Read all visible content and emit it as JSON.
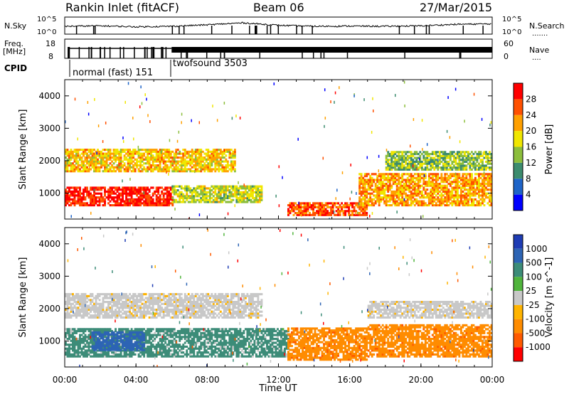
{
  "header": {
    "station": "Rankin Inlet (fitACF)",
    "beam": "Beam 06",
    "date": "27/Mar/2015"
  },
  "colors": {
    "power_scale": [
      "#0000ff",
      "#1e64c8",
      "#3c8c6e",
      "#8cbe3c",
      "#f0e600",
      "#ffa000",
      "#ff5000",
      "#ff0000"
    ],
    "velocity_scale": [
      "#1e3cb4",
      "#2d64b4",
      "#3c8c78",
      "#50b43c",
      "#c8c8c8",
      "#ffb400",
      "#ff8c00",
      "#ff5a00",
      "#ff0000"
    ]
  },
  "chart_data": [
    {
      "type": "line",
      "title": "",
      "panel": "noise-and-search",
      "left_label": "N.Sky",
      "right_label": "N.Search",
      "left_ticks": [
        "10^5",
        "10^0"
      ],
      "right_ticks": [
        "10^5",
        "10^0"
      ],
      "x": [
        "00:00",
        "02:00",
        "04:00",
        "06:00",
        "08:00",
        "10:00",
        "12:00",
        "14:00",
        "16:00",
        "18:00",
        "20:00",
        "22:00",
        "24:00"
      ],
      "series": [
        {
          "name": "N.Sky",
          "values": [
            2.0,
            2.2,
            1.8,
            2.0,
            2.6,
            3.4,
            2.4,
            2.0,
            2.1,
            2.0,
            2.2,
            2.8,
            3.0
          ]
        },
        {
          "name": "N.Search",
          "values": [
            1.0,
            1.0,
            1.0,
            1.0,
            1.0,
            1.0,
            1.0,
            1.0,
            1.0,
            1.0,
            1.0,
            2.6,
            2.8
          ]
        }
      ]
    },
    {
      "type": "line",
      "title": "",
      "panel": "frequency-and-nave",
      "left_label": "Freq.",
      "left_unit": "[MHz]",
      "right_label": "Nave",
      "left_ticks": [
        "18",
        "8"
      ],
      "right_ticks": [
        "60",
        "0"
      ],
      "cpid_label": "CPID",
      "cpid_segments": [
        {
          "name": "normal (fast) 151",
          "start": "00:45",
          "end": "06:00"
        },
        {
          "name": "twofsound 3503",
          "start": "06:00",
          "end": "24:00"
        }
      ]
    },
    {
      "type": "heatmap",
      "title": "",
      "panel": "power",
      "xlabel": "",
      "ylabel": "Slant Range [km]",
      "yticks": [
        "1000",
        "2000",
        "3000",
        "4000"
      ],
      "ylim": [
        200,
        4500
      ],
      "colorbar_label": "Power [dB]",
      "colorbar_ticks": [
        "4",
        "8",
        "12",
        "16",
        "20",
        "24",
        "28"
      ],
      "bands": [
        {
          "start_h": 0.0,
          "end_h": 6.0,
          "range_km": [
            600,
            1200
          ],
          "level": 27
        },
        {
          "start_h": 0.0,
          "end_h": 9.5,
          "range_km": [
            1650,
            2350
          ],
          "level": 18
        },
        {
          "start_h": 6.0,
          "end_h": 11.0,
          "range_km": [
            700,
            1200
          ],
          "level": 14
        },
        {
          "start_h": 12.5,
          "end_h": 17.0,
          "range_km": [
            300,
            700
          ],
          "level": 24
        },
        {
          "start_h": 16.5,
          "end_h": 24.0,
          "range_km": [
            600,
            1600
          ],
          "level": 20
        },
        {
          "start_h": 18.0,
          "end_h": 24.0,
          "range_km": [
            1700,
            2300
          ],
          "level": 12
        }
      ]
    },
    {
      "type": "heatmap",
      "title": "",
      "panel": "velocity",
      "xlabel": "Time UT",
      "ylabel": "Slant Range [km]",
      "yticks": [
        "1000",
        "2000",
        "3000",
        "4000"
      ],
      "ylim": [
        200,
        4500
      ],
      "xticks": [
        "00:00",
        "04:00",
        "08:00",
        "12:00",
        "16:00",
        "20:00",
        "00:00"
      ],
      "colorbar_label": "Velocity [m s^-1]",
      "colorbar_ticks": [
        "1000",
        "500",
        "100",
        "25",
        "-25",
        "-100",
        "-500",
        "-1000"
      ],
      "bands": [
        {
          "start_h": 0.0,
          "end_h": 11.0,
          "range_km": [
            1700,
            2450
          ],
          "velocity": 0
        },
        {
          "start_h": 0.0,
          "end_h": 12.5,
          "range_km": [
            500,
            1400
          ],
          "velocity": 150
        },
        {
          "start_h": 1.5,
          "end_h": 4.5,
          "range_km": [
            700,
            1300
          ],
          "velocity": 900
        },
        {
          "start_h": 12.5,
          "end_h": 17.0,
          "range_km": [
            400,
            1400
          ],
          "velocity": -300
        },
        {
          "start_h": 17.0,
          "end_h": 24.0,
          "range_km": [
            500,
            1500
          ],
          "velocity": -250
        },
        {
          "start_h": 17.0,
          "end_h": 24.0,
          "range_km": [
            1700,
            2200
          ],
          "velocity": 0
        }
      ]
    }
  ]
}
